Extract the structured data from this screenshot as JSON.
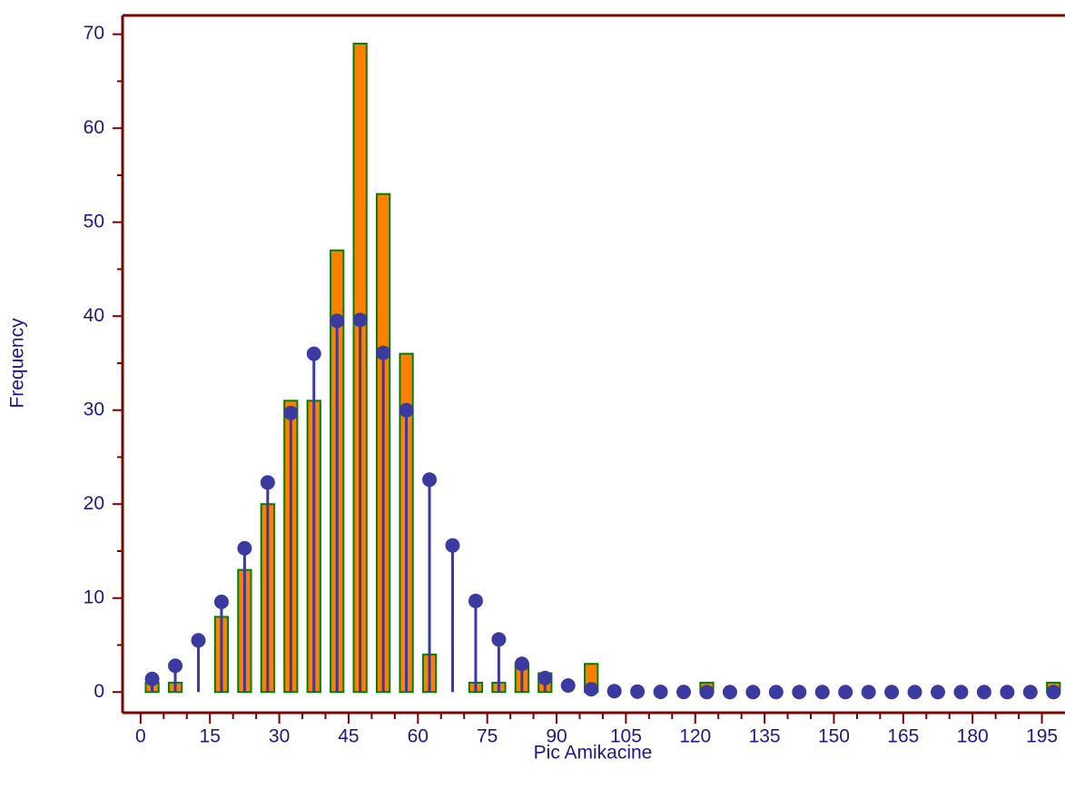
{
  "chart_data": {
    "type": "histogram",
    "x_label": "Pic Amikacine",
    "y_label": "Frequency",
    "bins": [
      0,
      5,
      10,
      15,
      20,
      25,
      30,
      35,
      40,
      45,
      50,
      55,
      60,
      65,
      70,
      75,
      80,
      85,
      90,
      95,
      100,
      105,
      110,
      115,
      120,
      125,
      130,
      135,
      140,
      145,
      150,
      155,
      160,
      165,
      170,
      175,
      180,
      185,
      190,
      195,
      200
    ],
    "values": [
      1,
      1,
      0,
      8,
      13,
      20,
      31,
      31,
      47,
      69,
      53,
      36,
      4,
      0,
      1,
      1,
      3,
      2,
      0,
      3,
      0,
      0,
      0,
      0,
      1,
      0,
      0,
      0,
      0,
      0,
      0,
      0,
      0,
      0,
      0,
      0,
      0,
      0,
      0,
      1
    ],
    "fitted_values": [
      1.4,
      2.8,
      5.5,
      9.6,
      15.3,
      22.3,
      29.7,
      36,
      39.5,
      39.6,
      36.1,
      30,
      22.6,
      15.6,
      9.7,
      5.6,
      3,
      1.5,
      0.7,
      0.3,
      0.1,
      0.05,
      0.02,
      0.01,
      0,
      0,
      0,
      0,
      0,
      0,
      0,
      0,
      0,
      0,
      0,
      0,
      0,
      0,
      0,
      0
    ],
    "color": "#ff7f00",
    "edge_color": "#008000",
    "fit_color": "#3a3aa0",
    "axis_color": "#7a0000",
    "xlim": [
      -3.9,
      200
    ],
    "ylim": [
      -2.2,
      72
    ],
    "xticks": [
      0,
      15,
      30,
      45,
      60,
      75,
      90,
      105,
      120,
      135,
      150,
      165,
      180,
      195
    ],
    "yticks": [
      0,
      10,
      20,
      30,
      40,
      50,
      60,
      70
    ]
  }
}
